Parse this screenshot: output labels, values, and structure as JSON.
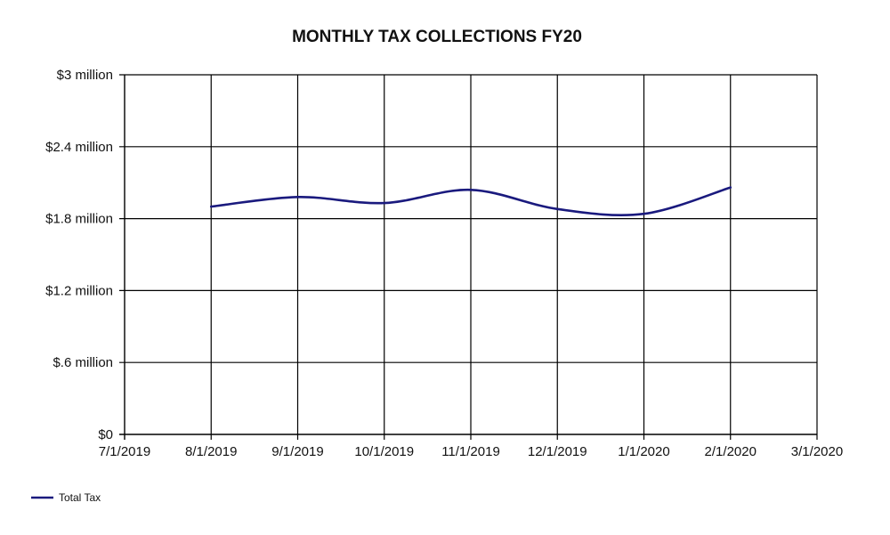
{
  "chart_data": {
    "type": "line",
    "title": "MONTHLY TAX COLLECTIONS FY20",
    "xlabel": "",
    "ylabel": "",
    "x_ticks": [
      "7/1/2019",
      "8/1/2019",
      "9/1/2019",
      "10/1/2019",
      "11/1/2019",
      "12/1/2019",
      "1/1/2020",
      "2/1/2020",
      "3/1/2020"
    ],
    "y_ticks": [
      {
        "value": 0,
        "label": "$0"
      },
      {
        "value": 0.6,
        "label": "$.6 million"
      },
      {
        "value": 1.2,
        "label": "$1.2 million"
      },
      {
        "value": 1.8,
        "label": "$1.8 million"
      },
      {
        "value": 2.4,
        "label": "$2.4 million"
      },
      {
        "value": 3.0,
        "label": "$3 million"
      }
    ],
    "ylim": [
      0,
      3.0
    ],
    "y_unit": "million dollars",
    "grid": true,
    "legend_position": "bottom-left",
    "series": [
      {
        "name": "Total Tax",
        "color": "#1a1a7e",
        "x": [
          "8/1/2019",
          "9/1/2019",
          "10/1/2019",
          "11/1/2019",
          "12/1/2019",
          "1/1/2020",
          "2/1/2020"
        ],
        "values": [
          1.9,
          1.98,
          1.93,
          2.04,
          1.88,
          1.84,
          2.06
        ]
      }
    ]
  }
}
